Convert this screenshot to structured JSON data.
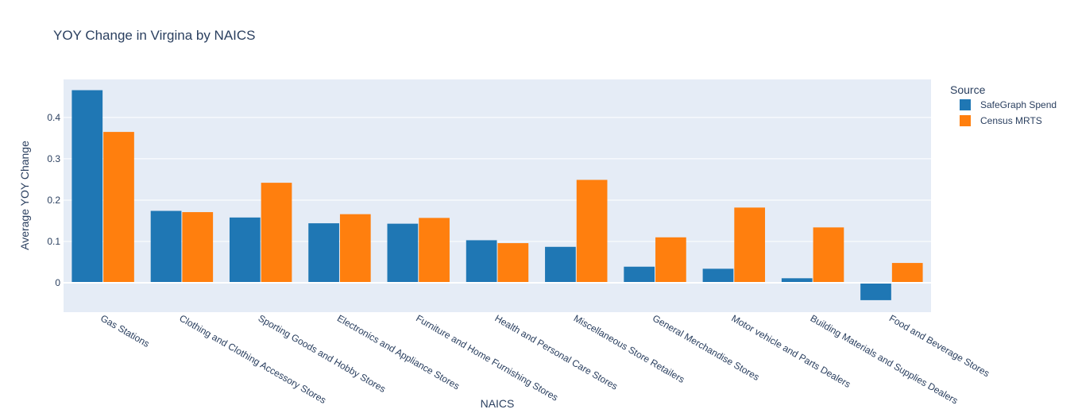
{
  "chart_data": {
    "type": "bar",
    "title": "YOY Change in Virgina by NAICS",
    "xlabel": "NAICS",
    "ylabel": "Average YOY Change",
    "categories": [
      "Gas Stations",
      "Clothing and Clothing Accessory Stores",
      "Sporting Goods and Hobby Stores",
      "Electronics and Appliance Stores",
      "Furniture and Home Furnishing Stores",
      "Health and Personal Care Stores",
      "Miscellaneous Store Retailers",
      "General Merchandise Stores",
      "Motor vehicle and Parts Dealers",
      "Building Materials and Supplies Dealers",
      "Food and Beverage Stores"
    ],
    "series": [
      {
        "name": "SafeGraph Spend",
        "color": "#1f77b4",
        "values": [
          0.466,
          0.174,
          0.158,
          0.144,
          0.143,
          0.103,
          0.087,
          0.039,
          0.034,
          0.011,
          -0.042
        ]
      },
      {
        "name": "Census MRTS",
        "color": "#ff7f0e",
        "values": [
          0.365,
          0.171,
          0.242,
          0.166,
          0.157,
          0.096,
          0.249,
          0.11,
          0.182,
          0.134,
          0.048
        ]
      }
    ],
    "ylim": [
      -0.071,
      0.492
    ],
    "yticks": [
      0,
      0.1,
      0.2,
      0.3,
      0.4
    ],
    "ytick_labels": [
      "0",
      "0.1",
      "0.2",
      "0.3",
      "0.4"
    ],
    "grid": true,
    "legend": {
      "title": "Source",
      "position": "right"
    },
    "plot_bgcolor": "#e5ecf6"
  }
}
